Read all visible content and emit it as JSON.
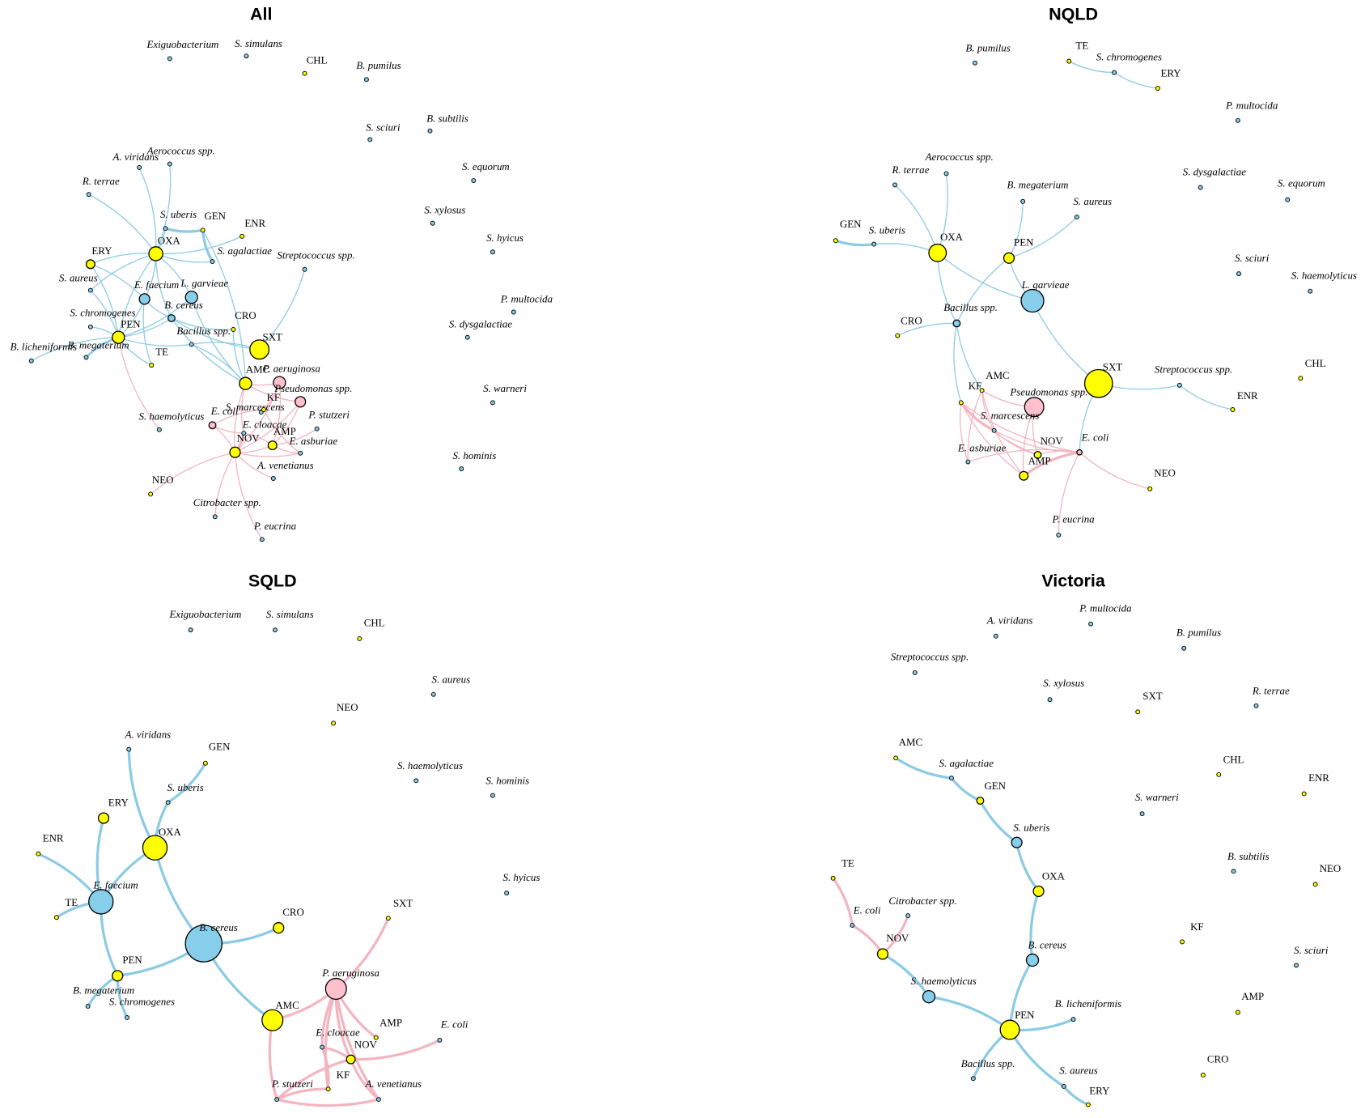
{
  "panels": [
    {
      "title": "All",
      "nodes": [
        "Exiguobacterium",
        "S. simulans",
        "CHL",
        "B. pumilus",
        "B. subtilis",
        "S. sciuri",
        "S. equorum",
        "S. xylosus",
        "S. hyicus",
        "P. multocida",
        "S. dysgalactiae",
        "S. warneri",
        "S. hominis",
        "A. viridans",
        "Aerococcus spp.",
        "R. terrae",
        "S. uberis",
        "GEN",
        "ENR",
        "S. agalactiae",
        "Streptococcus spp.",
        "OXA",
        "ERY",
        "S. aureus",
        "E. faecium",
        "L. garvieae",
        "B. cereus",
        "S. chromogenes",
        "CRO",
        "PEN",
        "Bacillus spp.",
        "B. megaterium",
        "B. licheniformis",
        "TE",
        "SXT",
        "P. aeruginosa",
        "AMC",
        "Pseudomonas spp.",
        "S. marcescens",
        "KF",
        "E. coli",
        "P. stutzeri",
        "S. haemolyticus",
        "E. cloacae",
        "AMP",
        "NOV",
        "E. asburiae",
        "A. venetianus",
        "NEO",
        "Citrobacter spp.",
        "P. eucrina"
      ]
    },
    {
      "title": "NQLD",
      "nodes": [
        "B. pumilus",
        "TE",
        "S. chromogenes",
        "ERY",
        "P. multocida",
        "Aerococcus spp.",
        "R. terrae",
        "S. dysgalactiae",
        "S. equorum",
        "B. megaterium",
        "S. aureus",
        "GEN",
        "S. uberis",
        "OXA",
        "PEN",
        "S. sciuri",
        "S. haemolyticus",
        "L. garvieae",
        "Bacillus spp.",
        "CRO",
        "Streptococcus spp.",
        "CHL",
        "SXT",
        "AMC",
        "KF",
        "Pseudomonas spp.",
        "ENR",
        "S. marcescens",
        "E. coli",
        "NOV",
        "E. asburiae",
        "AMP",
        "NEO",
        "P. eucrina"
      ]
    },
    {
      "title": "SQLD",
      "nodes": [
        "Exiguobacterium",
        "S. simulans",
        "CHL",
        "S. aureus",
        "NEO",
        "A. viridans",
        "GEN",
        "S. haemolyticus",
        "S. hominis",
        "S. uberis",
        "ERY",
        "OXA",
        "ENR",
        "S. hyicus",
        "E. faecium",
        "TE",
        "CRO",
        "SXT",
        "B. cereus",
        "PEN",
        "P. aeruginosa",
        "B. megaterium",
        "S. chromogenes",
        "AMC",
        "AMP",
        "E. coli",
        "E. cloacae",
        "NOV",
        "KF",
        "P. stutzeri",
        "A. venetianus"
      ]
    },
    {
      "title": "Victoria",
      "nodes": [
        "A. viridans",
        "P. multocida",
        "B. pumilus",
        "Streptococcus spp.",
        "S. xylosus",
        "SXT",
        "R. terrae",
        "AMC",
        "S. agalactiae",
        "CHL",
        "ENR",
        "GEN",
        "S. warneri",
        "S. uberis",
        "B. subtilis",
        "NEO",
        "TE",
        "OXA",
        "Citrobacter spp.",
        "E. coli",
        "KF",
        "NOV",
        "B. cereus",
        "S. sciuri",
        "S. haemolyticus",
        "AMP",
        "B. licheniformis",
        "PEN",
        "Bacillus spp.",
        "CRO",
        "S. aureus",
        "ERY"
      ]
    }
  ]
}
